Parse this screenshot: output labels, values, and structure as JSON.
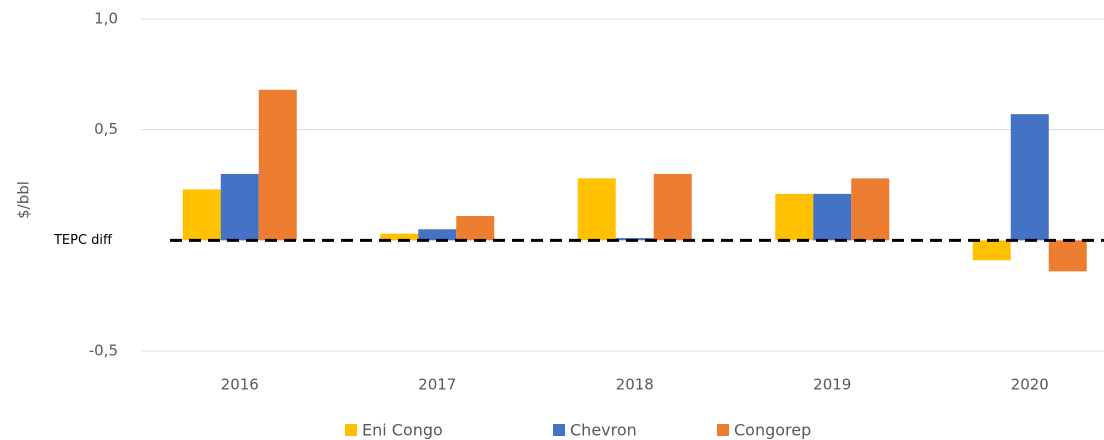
{
  "chart_data": {
    "type": "bar",
    "y_label": "$/bbl",
    "categories": [
      "2016",
      "2017",
      "2018",
      "2019",
      "2020"
    ],
    "series": [
      {
        "name": "Eni Congo",
        "color": "#ffc000",
        "values": [
          0.23,
          0.03,
          0.28,
          0.21,
          -0.09
        ]
      },
      {
        "name": "Chevron",
        "color": "#4472c4",
        "values": [
          0.3,
          0.05,
          0.01,
          0.21,
          0.57
        ]
      },
      {
        "name": "Congorep",
        "color": "#ed7d31",
        "values": [
          0.68,
          0.11,
          0.3,
          0.28,
          -0.14
        ]
      }
    ],
    "ylim": [
      -0.5,
      1.0
    ],
    "yticks": [
      {
        "value": -0.5,
        "label": "-0,5"
      },
      {
        "value": 0,
        "label": "TEPC diff"
      },
      {
        "value": 0.5,
        "label": "0,5"
      },
      {
        "value": 1.0,
        "label": "1,0"
      }
    ],
    "grid": true,
    "legend": "bottom"
  }
}
